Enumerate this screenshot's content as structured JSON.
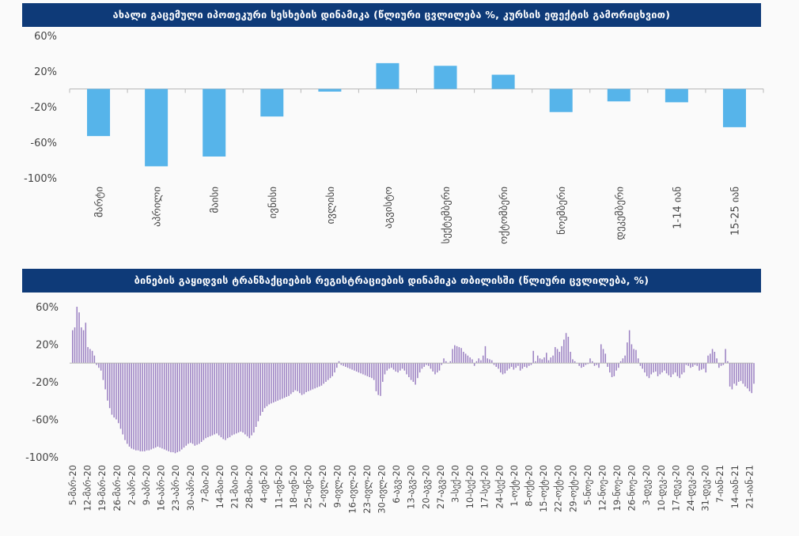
{
  "panels": {
    "mortgage_title": "ახალი გაცემული იპოთეკური სესხების დინამიკა (წლიური ცვლილება %, კურსის ეფექტის გამორიცხვით)",
    "transactions_title": "ბინების გაყიდვის ტრანზაქციების რეგისტრაციების დინამიკა თბილისში (წლიური ცვლილება, %)"
  },
  "colors": {
    "banner": "#0e3a78",
    "bar_blue": "#56b4ea",
    "bar_purple": "#9b80c2"
  },
  "chart_data": [
    {
      "type": "bar",
      "title": "ახალი გაცემული იპოთეკური სესხების დინამიკა (წლიური ცვლილება %, კურსის ეფექტის გამორიცხვით)",
      "categories": [
        "მარტი",
        "აპრილი",
        "მაისი",
        "ივნისი",
        "ივლისი",
        "აგვისტო",
        "სექტემბერი",
        "ოქტომბერი",
        "ნოემბერი",
        "დეკემბერი",
        "1-14 იან",
        "15-25 იან"
      ],
      "values": [
        -53,
        -87,
        -76,
        -31,
        -3,
        29,
        26,
        16,
        -26,
        -14,
        -15,
        -43
      ],
      "ylim": [
        -100,
        60
      ],
      "yticks": [
        60,
        20,
        -20,
        -60,
        -100
      ],
      "ytick_labels": [
        "60%",
        "20%",
        "-20%",
        "-60%",
        "-100%"
      ]
    },
    {
      "type": "bar",
      "title": "ბინების გაყიდვის ტრანზაქციების რეგისტრაციების დინამიკა თბილისში (წლიური ცვლილება, %)",
      "ylim": [
        -100,
        60
      ],
      "yticks": [
        60,
        20,
        -20,
        -60,
        -100
      ],
      "ytick_labels": [
        "60%",
        "20%",
        "-20%",
        "-60%",
        "-100%"
      ],
      "x_tick_labels": [
        "5-მარ-20",
        "12-მარ-20",
        "19-მარ-20",
        "26-მარ-20",
        "2-აპრ-20",
        "9-აპრ-20",
        "16-აპრ-20",
        "23-აპრ-20",
        "30-აპრ-20",
        "7-მაი-20",
        "14-მაი-20",
        "21-მაი-20",
        "28-მაი-20",
        "4-ივნ-20",
        "11-ივნ-20",
        "18-ივნ-20",
        "25-ივნ-20",
        "2-ივლ-20",
        "9-ივლ-20",
        "16-ივლ-20",
        "23-ივლ-20",
        "30-ივლ-20",
        "6-აგვ-20",
        "13-აგვ-20",
        "20-აგვ-20",
        "27-აგვ-20",
        "3-სექ-20",
        "10-სექ-20",
        "17-სექ-20",
        "24-სექ-20",
        "1-ოქტ-20",
        "8-ოქტ-20",
        "15-ოქტ-20",
        "22-ოქტ-20",
        "29-ოქტ-20",
        "5-ნოე-20",
        "12-ნოე-20",
        "19-ნოე-20",
        "26-ნოე-20",
        "3-დეკ-20",
        "10-დეკ-20",
        "17-დეკ-20",
        "24-დეკ-20",
        "31-დეკ-20",
        "7-იან-21",
        "14-იან-21",
        "21-იან-21"
      ],
      "values": [
        35,
        38,
        60,
        54,
        38,
        35,
        43,
        17,
        15,
        13,
        8,
        -2,
        -5,
        -8,
        -18,
        -28,
        -40,
        -48,
        -55,
        -58,
        -60,
        -64,
        -70,
        -76,
        -82,
        -86,
        -89,
        -91,
        -92,
        -93,
        -93,
        -94,
        -94,
        -94,
        -93,
        -93,
        -92,
        -91,
        -90,
        -89,
        -90,
        -91,
        -92,
        -93,
        -94,
        -95,
        -95,
        -96,
        -95,
        -94,
        -92,
        -90,
        -88,
        -86,
        -85,
        -86,
        -88,
        -87,
        -86,
        -84,
        -82,
        -80,
        -79,
        -78,
        -77,
        -76,
        -75,
        -77,
        -79,
        -81,
        -82,
        -80,
        -79,
        -77,
        -76,
        -75,
        -74,
        -73,
        -74,
        -76,
        -78,
        -80,
        -77,
        -74,
        -68,
        -62,
        -56,
        -52,
        -48,
        -46,
        -44,
        -43,
        -42,
        -41,
        -40,
        -39,
        -38,
        -37,
        -36,
        -35,
        -33,
        -31,
        -29,
        -30,
        -32,
        -34,
        -33,
        -31,
        -30,
        -29,
        -28,
        -27,
        -26,
        -25,
        -24,
        -22,
        -20,
        -18,
        -16,
        -14,
        -10,
        -5,
        2,
        -2,
        -3,
        -4,
        -5,
        -6,
        -7,
        -8,
        -9,
        -10,
        -11,
        -12,
        -13,
        -14,
        -15,
        -16,
        -18,
        -30,
        -34,
        -35,
        -20,
        -12,
        -8,
        -6,
        -5,
        -7,
        -9,
        -10,
        -8,
        -6,
        -8,
        -12,
        -15,
        -18,
        -20,
        -23,
        -16,
        -10,
        -6,
        -4,
        -2,
        -3,
        -6,
        -9,
        -12,
        -10,
        -8,
        -2,
        5,
        2,
        0,
        2,
        15,
        19,
        18,
        17,
        16,
        12,
        10,
        8,
        6,
        4,
        -3,
        2,
        5,
        3,
        8,
        18,
        5,
        4,
        3,
        -2,
        -4,
        -6,
        -10,
        -12,
        -11,
        -8,
        -6,
        -4,
        -7,
        -5,
        -3,
        -8,
        -6,
        -4,
        -5,
        -3,
        -2,
        13,
        2,
        8,
        5,
        4,
        6,
        11,
        3,
        6,
        8,
        17,
        15,
        12,
        18,
        25,
        32,
        28,
        12,
        4,
        2,
        0,
        -3,
        -5,
        -4,
        -2,
        -1,
        5,
        2,
        -3,
        -2,
        -5,
        20,
        15,
        10,
        -4,
        -10,
        -15,
        -14,
        -8,
        -5,
        2,
        5,
        8,
        22,
        35,
        20,
        15,
        14,
        5,
        -3,
        -6,
        -10,
        -14,
        -16,
        -12,
        -10,
        -9,
        -14,
        -12,
        -10,
        -8,
        -11,
        -13,
        -15,
        -12,
        -10,
        -14,
        -16,
        -12,
        -10,
        -2,
        -3,
        -5,
        -4,
        -2,
        -3,
        -8,
        -7,
        -6,
        -10,
        8,
        10,
        15,
        12,
        5,
        -5,
        -3,
        -2,
        15,
        2,
        -25,
        -28,
        -22,
        -24,
        -20,
        -19,
        -22,
        -25,
        -27,
        -30,
        -32,
        -22
      ]
    }
  ]
}
